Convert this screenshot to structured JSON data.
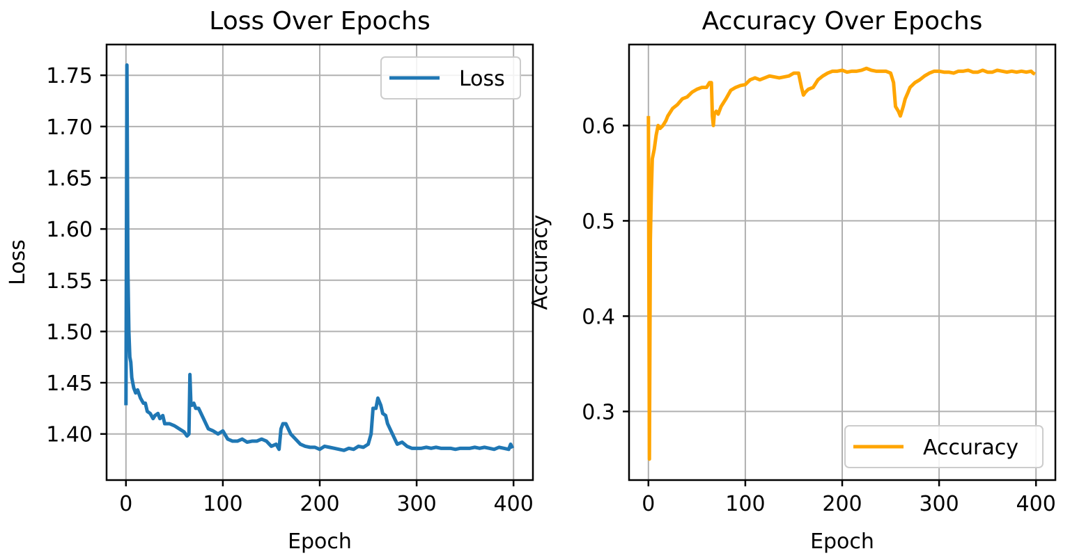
{
  "chart_data": [
    {
      "type": "line",
      "title": "Loss Over Epochs",
      "xlabel": "Epoch",
      "ylabel": "Loss",
      "xlim": [
        -20,
        420
      ],
      "ylim": [
        1.355,
        1.78
      ],
      "xticks": [
        0,
        100,
        200,
        300,
        400
      ],
      "yticks": [
        1.4,
        1.45,
        1.5,
        1.55,
        1.6,
        1.65,
        1.7,
        1.75
      ],
      "ytick_labels": [
        "1.40",
        "1.45",
        "1.50",
        "1.55",
        "1.60",
        "1.65",
        "1.70",
        "1.75"
      ],
      "grid": true,
      "legend_position": "top-right",
      "series": [
        {
          "name": "Loss",
          "color": "#1f77b4",
          "x": [
            0,
            1,
            2,
            3,
            4,
            5,
            6,
            8,
            10,
            12,
            15,
            18,
            20,
            22,
            25,
            28,
            30,
            33,
            35,
            38,
            40,
            45,
            50,
            55,
            60,
            63,
            65,
            66,
            67,
            68,
            70,
            72,
            75,
            80,
            85,
            90,
            95,
            100,
            105,
            110,
            115,
            120,
            125,
            130,
            135,
            140,
            145,
            150,
            155,
            158,
            160,
            162,
            165,
            170,
            175,
            180,
            185,
            190,
            195,
            200,
            205,
            210,
            215,
            220,
            225,
            230,
            235,
            240,
            245,
            250,
            253,
            255,
            258,
            260,
            263,
            265,
            268,
            270,
            275,
            280,
            285,
            290,
            295,
            300,
            305,
            310,
            315,
            320,
            325,
            330,
            335,
            340,
            345,
            350,
            355,
            360,
            365,
            370,
            375,
            380,
            385,
            390,
            395,
            397,
            399
          ],
          "values": [
            1.428,
            1.76,
            1.56,
            1.5,
            1.475,
            1.47,
            1.455,
            1.445,
            1.44,
            1.443,
            1.435,
            1.43,
            1.43,
            1.422,
            1.42,
            1.415,
            1.418,
            1.42,
            1.415,
            1.418,
            1.41,
            1.41,
            1.408,
            1.405,
            1.402,
            1.398,
            1.4,
            1.458,
            1.43,
            1.428,
            1.43,
            1.425,
            1.425,
            1.415,
            1.405,
            1.403,
            1.4,
            1.403,
            1.395,
            1.393,
            1.393,
            1.395,
            1.392,
            1.393,
            1.393,
            1.395,
            1.393,
            1.388,
            1.39,
            1.385,
            1.405,
            1.41,
            1.41,
            1.4,
            1.395,
            1.39,
            1.388,
            1.387,
            1.387,
            1.385,
            1.388,
            1.387,
            1.386,
            1.385,
            1.384,
            1.386,
            1.385,
            1.388,
            1.387,
            1.39,
            1.4,
            1.425,
            1.425,
            1.435,
            1.428,
            1.42,
            1.418,
            1.41,
            1.4,
            1.39,
            1.392,
            1.388,
            1.386,
            1.386,
            1.386,
            1.387,
            1.386,
            1.387,
            1.386,
            1.386,
            1.386,
            1.385,
            1.386,
            1.386,
            1.386,
            1.387,
            1.386,
            1.387,
            1.386,
            1.385,
            1.387,
            1.386,
            1.385,
            1.39,
            1.386
          ]
        }
      ]
    },
    {
      "type": "line",
      "title": "Accuracy Over Epochs",
      "xlabel": "Epoch",
      "ylabel": "Accuracy",
      "xlim": [
        -20,
        420
      ],
      "ylim": [
        0.228,
        0.685
      ],
      "xticks": [
        0,
        100,
        200,
        300,
        400
      ],
      "yticks": [
        0.3,
        0.4,
        0.5,
        0.6
      ],
      "ytick_labels": [
        "0.3",
        "0.4",
        "0.5",
        "0.6"
      ],
      "grid": true,
      "legend_position": "bottom-right",
      "series": [
        {
          "name": "Accuracy",
          "color": "#ffa500",
          "x": [
            0,
            1,
            2,
            3,
            4,
            5,
            6,
            8,
            10,
            12,
            15,
            18,
            20,
            25,
            30,
            35,
            40,
            45,
            50,
            55,
            60,
            63,
            65,
            66,
            67,
            68,
            70,
            72,
            75,
            80,
            85,
            90,
            95,
            100,
            105,
            110,
            115,
            120,
            125,
            130,
            135,
            140,
            145,
            150,
            155,
            158,
            160,
            162,
            165,
            170,
            175,
            180,
            185,
            190,
            195,
            200,
            205,
            210,
            215,
            220,
            225,
            230,
            235,
            240,
            245,
            250,
            253,
            255,
            258,
            260,
            263,
            265,
            268,
            270,
            275,
            280,
            285,
            290,
            295,
            300,
            305,
            310,
            315,
            320,
            325,
            330,
            335,
            340,
            345,
            350,
            355,
            360,
            365,
            370,
            375,
            380,
            385,
            390,
            395,
            397,
            399
          ],
          "values": [
            0.61,
            0.25,
            0.48,
            0.53,
            0.565,
            0.57,
            0.575,
            0.59,
            0.6,
            0.597,
            0.6,
            0.605,
            0.61,
            0.618,
            0.622,
            0.628,
            0.63,
            0.635,
            0.638,
            0.64,
            0.64,
            0.645,
            0.645,
            0.61,
            0.6,
            0.612,
            0.615,
            0.612,
            0.62,
            0.628,
            0.637,
            0.64,
            0.642,
            0.643,
            0.648,
            0.65,
            0.648,
            0.65,
            0.652,
            0.651,
            0.65,
            0.651,
            0.652,
            0.655,
            0.655,
            0.64,
            0.632,
            0.635,
            0.638,
            0.64,
            0.648,
            0.652,
            0.655,
            0.657,
            0.657,
            0.658,
            0.656,
            0.657,
            0.657,
            0.658,
            0.66,
            0.658,
            0.657,
            0.657,
            0.657,
            0.655,
            0.645,
            0.62,
            0.615,
            0.61,
            0.62,
            0.628,
            0.635,
            0.64,
            0.645,
            0.648,
            0.652,
            0.655,
            0.657,
            0.657,
            0.656,
            0.656,
            0.655,
            0.657,
            0.657,
            0.658,
            0.656,
            0.656,
            0.658,
            0.656,
            0.656,
            0.658,
            0.657,
            0.656,
            0.657,
            0.656,
            0.657,
            0.656,
            0.657,
            0.655,
            0.654
          ]
        }
      ]
    }
  ]
}
